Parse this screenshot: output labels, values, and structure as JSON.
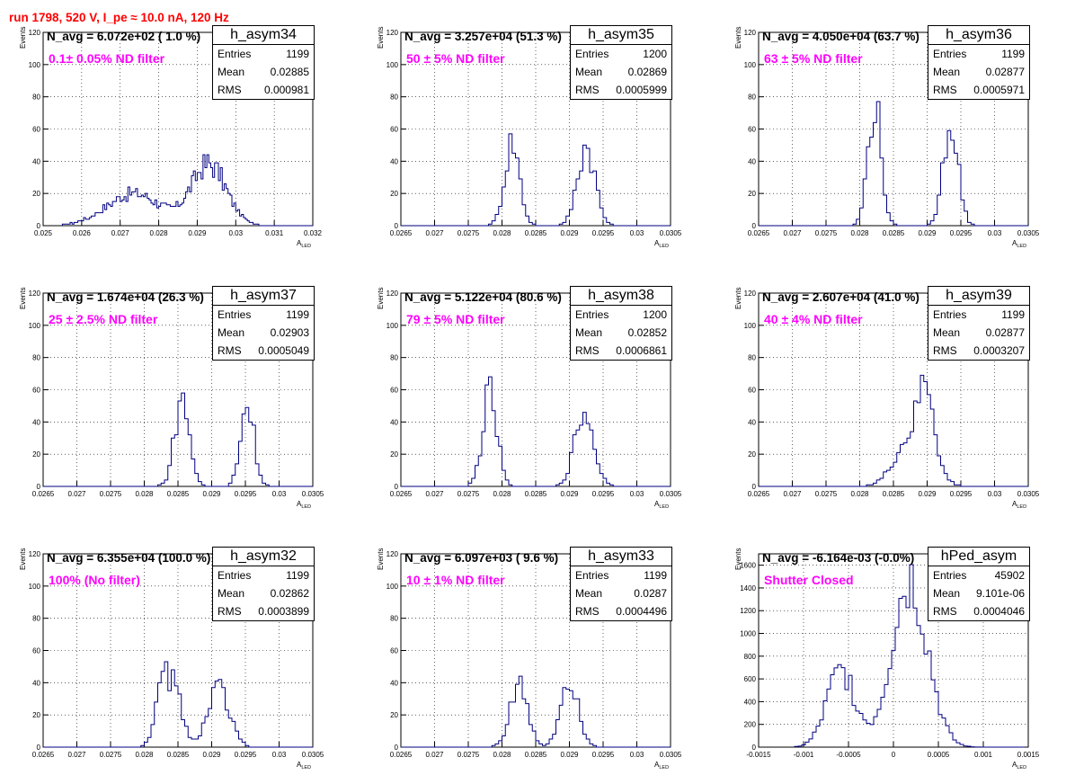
{
  "title": "run 1798,   520 V, I_pe ≈ 10.0 nA, 120 Hz",
  "axis_xlabel": "A",
  "axis_xlabel_sub": "LED",
  "axis_ylabel": "Events",
  "colors": {
    "title": "#ff0000",
    "hist": "#000080",
    "annotation": "#ff00ff",
    "grid": "#000000"
  },
  "chart_data": [
    {
      "type": "histogram",
      "name": "h_asym34",
      "navg": "N_avg = 6.072e+02 ( 1.0 %)",
      "filter": "0.1± 0.05% ND filter",
      "stats": [
        [
          "Entries",
          "1199"
        ],
        [
          "Mean",
          "0.02885"
        ],
        [
          "RMS",
          "0.000981"
        ]
      ],
      "xlim": [
        0.025,
        0.032
      ],
      "ylim": [
        0,
        120
      ],
      "xticks": [
        0.025,
        0.026,
        0.027,
        0.028,
        0.029,
        0.03,
        0.031,
        0.032
      ],
      "xtick_labels": [
        "0.025",
        "0.026",
        "0.027",
        "0.028",
        "0.029",
        "0.03",
        "0.031",
        "0.032"
      ],
      "yticks": [
        0,
        20,
        40,
        60,
        80,
        100,
        120
      ],
      "ytick_labels": [
        "0",
        "20",
        "40",
        "60",
        "80",
        "100",
        "120"
      ],
      "bin_start": 0.0255,
      "bin_width": 5e-05,
      "counts": [
        0,
        0,
        0,
        0,
        0,
        0,
        0,
        0,
        0,
        0,
        0,
        0,
        0,
        0,
        0,
        0,
        0,
        0,
        0,
        0,
        0,
        0,
        0,
        0,
        0,
        0,
        0,
        0,
        0,
        0,
        0,
        0,
        0,
        0,
        0,
        0,
        0,
        0,
        0,
        0,
        0,
        0,
        0,
        0,
        0,
        0,
        0,
        0,
        0,
        0,
        0,
        0,
        0,
        0,
        0,
        0,
        0,
        0,
        0,
        0,
        0,
        0,
        0,
        0,
        0,
        0,
        0,
        0,
        0,
        0,
        0,
        0,
        0,
        0,
        0,
        0,
        0,
        0,
        0,
        0,
        0,
        0,
        0,
        0,
        0,
        0,
        0,
        0,
        0,
        0,
        0,
        0,
        0,
        0,
        0,
        0,
        0,
        0,
        0,
        0,
        0,
        0,
        0,
        0,
        0,
        0,
        0,
        0,
        0,
        0,
        0,
        0,
        0,
        0,
        0,
        0,
        0,
        0,
        0,
        0,
        0,
        0,
        0,
        0,
        0,
        0,
        0,
        0,
        0,
        0
      ]
    },
    {
      "type": "histogram",
      "name": "h_asym35",
      "navg": "N_avg = 3.257e+04 (51.3 %)",
      "filter": "50 ± 5% ND filter",
      "stats": [
        [
          "Entries",
          "1200"
        ],
        [
          "Mean",
          "0.02869"
        ],
        [
          "RMS",
          "0.0005999"
        ]
      ],
      "xlim": [
        0.0265,
        0.0305
      ],
      "ylim": [
        0,
        120
      ],
      "xticks": [
        0.0265,
        0.027,
        0.0275,
        0.028,
        0.0285,
        0.029,
        0.0295,
        0.03,
        0.0305
      ],
      "xtick_labels": [
        "0.0265",
        "0.027",
        "0.0275",
        "0.028",
        "0.0285",
        "0.029",
        "0.0295",
        "0.03",
        "0.0305"
      ],
      "yticks": [
        0,
        20,
        40,
        60,
        80,
        100,
        120
      ],
      "ytick_labels": [
        "0",
        "20",
        "40",
        "60",
        "80",
        "100",
        "120"
      ],
      "bin_start": 0.0265,
      "bin_width": 5e-05,
      "counts": [
        0,
        0,
        0,
        0,
        0,
        0,
        0,
        0,
        0,
        0,
        0,
        0,
        0,
        0,
        0,
        0,
        0,
        0,
        0,
        0,
        0,
        0,
        0,
        0,
        0,
        0,
        0,
        0,
        0,
        0,
        0,
        0,
        0,
        0,
        0,
        0,
        0,
        0,
        0,
        0,
        0,
        0,
        0,
        0,
        0,
        0,
        0,
        0,
        0,
        0,
        0,
        0,
        0,
        0,
        0,
        0,
        0,
        0,
        0,
        0,
        0,
        0,
        0,
        0,
        0,
        0,
        0,
        0,
        0,
        0,
        0,
        0,
        0,
        0,
        0,
        0,
        0,
        0,
        0,
        0
      ]
    },
    {
      "type": "histogram",
      "name": "h_asym36",
      "navg": "N_avg = 4.050e+04 (63.7 %)",
      "filter": "63 ± 5% ND filter",
      "stats": [
        [
          "Entries",
          "1199"
        ],
        [
          "Mean",
          "0.02877"
        ],
        [
          "RMS",
          "0.0005971"
        ]
      ],
      "xlim": [
        0.0265,
        0.0305
      ],
      "ylim": [
        0,
        120
      ],
      "xticks": [
        0.0265,
        0.027,
        0.0275,
        0.028,
        0.0285,
        0.029,
        0.0295,
        0.03,
        0.0305
      ],
      "xtick_labels": [
        "0.0265",
        "0.027",
        "0.0275",
        "0.028",
        "0.0285",
        "0.029",
        "0.0295",
        "0.03",
        "0.0305"
      ],
      "yticks": [
        0,
        20,
        40,
        60,
        80,
        100,
        120
      ],
      "ytick_labels": [
        "0",
        "20",
        "40",
        "60",
        "80",
        "100",
        "120"
      ],
      "bin_start": 0.0265,
      "bin_width": 5e-05,
      "counts": [
        0,
        0,
        0,
        0,
        0,
        0,
        0,
        0,
        0,
        0,
        0,
        0,
        0,
        0,
        0,
        0,
        0,
        0,
        0,
        0,
        0,
        0,
        0,
        0,
        0,
        0,
        0,
        0,
        0,
        0,
        0,
        0,
        0,
        0,
        0,
        0,
        0,
        0,
        0,
        0,
        0,
        0,
        0,
        0,
        0,
        0,
        0,
        0,
        0,
        0,
        0,
        0,
        0,
        0,
        0,
        0,
        0,
        0,
        0,
        0,
        0,
        0,
        0,
        0,
        0,
        0,
        0,
        0,
        0,
        0,
        0,
        0,
        0,
        0,
        0,
        0,
        0,
        0,
        0,
        0
      ]
    },
    {
      "type": "histogram",
      "name": "h_asym37",
      "navg": "N_avg = 1.674e+04 (26.3 %)",
      "filter": "25 ± 2.5% ND filter",
      "stats": [
        [
          "Entries",
          "1199"
        ],
        [
          "Mean",
          "0.02903"
        ],
        [
          "RMS",
          "0.0005049"
        ]
      ],
      "xlim": [
        0.0265,
        0.0305
      ],
      "ylim": [
        0,
        120
      ],
      "xticks": [
        0.0265,
        0.027,
        0.0275,
        0.028,
        0.0285,
        0.029,
        0.0295,
        0.03,
        0.0305
      ],
      "xtick_labels": [
        "0.0265",
        "0.027",
        "0.0275",
        "0.028",
        "0.0285",
        "0.029",
        "0.0295",
        "0.03",
        "0.0305"
      ],
      "yticks": [
        0,
        20,
        40,
        60,
        80,
        100,
        120
      ],
      "ytick_labels": [
        "0",
        "20",
        "40",
        "60",
        "80",
        "100",
        "120"
      ],
      "bin_start": 0.0265,
      "bin_width": 5e-05,
      "counts": [
        0,
        0,
        0,
        0,
        0,
        0,
        0,
        0,
        0,
        0,
        0,
        0,
        0,
        0,
        0,
        0,
        0,
        0,
        0,
        0,
        0,
        0,
        0,
        0,
        0,
        0,
        0,
        0,
        0,
        0,
        0,
        0,
        0,
        0,
        0,
        0,
        0,
        0,
        0,
        0,
        0,
        0,
        0,
        0,
        0,
        0,
        0,
        0,
        0,
        0,
        0,
        0,
        0,
        0,
        0,
        0,
        0,
        0,
        0,
        0,
        0,
        0,
        0,
        0,
        0,
        0,
        0,
        0,
        0,
        0,
        0,
        0,
        0,
        0,
        0,
        0,
        0,
        0,
        0,
        0
      ]
    },
    {
      "type": "histogram",
      "name": "h_asym38",
      "navg": "N_avg = 5.122e+04 (80.6 %)",
      "filter": "79 ± 5% ND filter",
      "stats": [
        [
          "Entries",
          "1200"
        ],
        [
          "Mean",
          "0.02852"
        ],
        [
          "RMS",
          "0.0006861"
        ]
      ],
      "xlim": [
        0.0265,
        0.0305
      ],
      "ylim": [
        0,
        120
      ],
      "xticks": [
        0.0265,
        0.027,
        0.0275,
        0.028,
        0.0285,
        0.029,
        0.0295,
        0.03,
        0.0305
      ],
      "xtick_labels": [
        "0.0265",
        "0.027",
        "0.0275",
        "0.028",
        "0.0285",
        "0.029",
        "0.0295",
        "0.03",
        "0.0305"
      ],
      "yticks": [
        0,
        20,
        40,
        60,
        80,
        100,
        120
      ],
      "ytick_labels": [
        "0",
        "20",
        "40",
        "60",
        "80",
        "100",
        "120"
      ],
      "bin_start": 0.0265,
      "bin_width": 5e-05,
      "counts": [
        0,
        0,
        0,
        0,
        0,
        0,
        0,
        0,
        0,
        0,
        0,
        0,
        0,
        0,
        0,
        0,
        0,
        0,
        0,
        0,
        0,
        0,
        0,
        0,
        0,
        0,
        0,
        0,
        0,
        0,
        0,
        0,
        0,
        0,
        0,
        0,
        0,
        0,
        0,
        0,
        0,
        0,
        0,
        0,
        0,
        0,
        0,
        0,
        0,
        0,
        0,
        0,
        0,
        0,
        0,
        0,
        0,
        0,
        0,
        0,
        0,
        0,
        0,
        0,
        0,
        0,
        0,
        0,
        0,
        0,
        0,
        0,
        0,
        0,
        0,
        0,
        0,
        0,
        0,
        0
      ]
    },
    {
      "type": "histogram",
      "name": "h_asym39",
      "navg": "N_avg = 2.607e+04 (41.0 %)",
      "filter": "40 ± 4% ND filter",
      "stats": [
        [
          "Entries",
          "1199"
        ],
        [
          "Mean",
          "0.02877"
        ],
        [
          "RMS",
          "0.0003207"
        ]
      ],
      "xlim": [
        0.0265,
        0.0305
      ],
      "ylim": [
        0,
        120
      ],
      "xticks": [
        0.0265,
        0.027,
        0.0275,
        0.028,
        0.0285,
        0.029,
        0.0295,
        0.03,
        0.0305
      ],
      "xtick_labels": [
        "0.0265",
        "0.027",
        "0.0275",
        "0.028",
        "0.0285",
        "0.029",
        "0.0295",
        "0.03",
        "0.0305"
      ],
      "yticks": [
        0,
        20,
        40,
        60,
        80,
        100,
        120
      ],
      "ytick_labels": [
        "0",
        "20",
        "40",
        "60",
        "80",
        "100",
        "120"
      ],
      "bin_start": 0.0265,
      "bin_width": 5e-05,
      "counts": [
        0,
        0,
        0,
        0,
        0,
        0,
        0,
        0,
        0,
        0,
        0,
        0,
        0,
        0,
        0,
        0,
        0,
        0,
        0,
        0,
        0,
        0,
        0,
        0,
        0,
        0,
        0,
        0,
        0,
        0,
        0,
        0,
        0,
        0,
        0,
        0,
        0,
        0,
        0,
        0,
        0,
        0,
        0,
        0,
        0,
        0,
        0,
        0,
        0,
        0,
        0,
        0,
        0,
        0,
        0,
        0,
        0,
        0,
        0,
        0,
        0,
        0,
        0,
        0,
        0,
        0,
        0,
        0,
        0,
        0,
        0,
        0,
        0,
        0,
        0,
        0,
        0,
        0,
        0,
        0
      ]
    },
    {
      "type": "histogram",
      "name": "h_asym32",
      "navg": "N_avg = 6.355e+04 (100.0 %)",
      "filter": "100% (No filter)",
      "stats": [
        [
          "Entries",
          "1199"
        ],
        [
          "Mean",
          "0.02862"
        ],
        [
          "RMS",
          "0.0003899"
        ]
      ],
      "xlim": [
        0.0265,
        0.0305
      ],
      "ylim": [
        0,
        120
      ],
      "xticks": [
        0.0265,
        0.027,
        0.0275,
        0.028,
        0.0285,
        0.029,
        0.0295,
        0.03,
        0.0305
      ],
      "xtick_labels": [
        "0.0265",
        "0.027",
        "0.0275",
        "0.028",
        "0.0285",
        "0.029",
        "0.0295",
        "0.03",
        "0.0305"
      ],
      "yticks": [
        0,
        20,
        40,
        60,
        80,
        100,
        120
      ],
      "ytick_labels": [
        "0",
        "20",
        "40",
        "60",
        "80",
        "100",
        "120"
      ],
      "bin_start": 0.0265,
      "bin_width": 5e-05,
      "counts": [
        0,
        0,
        0,
        0,
        0,
        0,
        0,
        0,
        0,
        0,
        0,
        0,
        0,
        0,
        0,
        0,
        0,
        0,
        0,
        0,
        0,
        0,
        0,
        0,
        0,
        0,
        0,
        0,
        0,
        0,
        0,
        0,
        0,
        0,
        0,
        0,
        0,
        0,
        0,
        0,
        0,
        0,
        0,
        0,
        0,
        0,
        0,
        0,
        0,
        0,
        0,
        0,
        0,
        0,
        0,
        0,
        0,
        0,
        0,
        0,
        0,
        0,
        0,
        0,
        0,
        0,
        0,
        0,
        0,
        0,
        0,
        0,
        0,
        0,
        0,
        0,
        0,
        0,
        0,
        0
      ]
    },
    {
      "type": "histogram",
      "name": "h_asym33",
      "navg": "N_avg = 6.097e+03 ( 9.6 %)",
      "filter": "10 ± 1% ND filter",
      "stats": [
        [
          "Entries",
          "1199"
        ],
        [
          "Mean",
          "0.0287"
        ],
        [
          "RMS",
          "0.0004496"
        ]
      ],
      "xlim": [
        0.0265,
        0.0305
      ],
      "ylim": [
        0,
        120
      ],
      "xticks": [
        0.0265,
        0.027,
        0.0275,
        0.028,
        0.0285,
        0.029,
        0.0295,
        0.03,
        0.0305
      ],
      "xtick_labels": [
        "0.0265",
        "0.027",
        "0.0275",
        "0.028",
        "0.0285",
        "0.029",
        "0.0295",
        "0.03",
        "0.0305"
      ],
      "yticks": [
        0,
        20,
        40,
        60,
        80,
        100,
        120
      ],
      "ytick_labels": [
        "0",
        "20",
        "40",
        "60",
        "80",
        "100",
        "120"
      ],
      "bin_start": 0.0265,
      "bin_width": 5e-05,
      "counts": [
        0,
        0,
        0,
        0,
        0,
        0,
        0,
        0,
        0,
        0,
        0,
        0,
        0,
        0,
        0,
        0,
        0,
        0,
        0,
        0,
        0,
        0,
        0,
        0,
        0,
        0,
        0,
        0,
        0,
        0,
        0,
        0,
        0,
        0,
        0,
        0,
        0,
        0,
        0,
        0,
        0,
        0,
        0,
        0,
        0,
        0,
        0,
        0,
        0,
        0,
        0,
        0,
        0,
        0,
        0,
        0,
        0,
        0,
        0,
        0,
        0,
        0,
        0,
        0,
        0,
        0,
        0,
        0,
        0,
        0,
        0,
        0,
        0,
        0,
        0,
        0,
        0,
        0,
        0,
        0
      ]
    },
    {
      "type": "histogram",
      "name": "hPed_asym",
      "navg": "N_avg = -6.164e-03 (-0.0%)",
      "filter": "Shutter Closed",
      "stats": [
        [
          "Entries",
          "45902"
        ],
        [
          "Mean",
          "9.101e-06"
        ],
        [
          "RMS",
          "0.0004046"
        ]
      ],
      "xlim": [
        -0.0015,
        0.0015
      ],
      "ylim": [
        0,
        1700
      ],
      "xticks": [
        -0.0015,
        -0.001,
        -0.0005,
        0,
        0.0005,
        0.001,
        0.0015
      ],
      "xtick_labels": [
        "-0.0015",
        "-0.001",
        "-0.0005",
        "0",
        "0.0005",
        "0.001",
        "0.0015"
      ],
      "yticks": [
        0,
        200,
        400,
        600,
        800,
        1000,
        1200,
        1400,
        1600
      ],
      "ytick_labels": [
        "0",
        "200",
        "400",
        "600",
        "800",
        "1000",
        "1200",
        "1400",
        "1600"
      ],
      "bin_start": -0.0011,
      "bin_width": 4e-05,
      "counts": []
    }
  ]
}
